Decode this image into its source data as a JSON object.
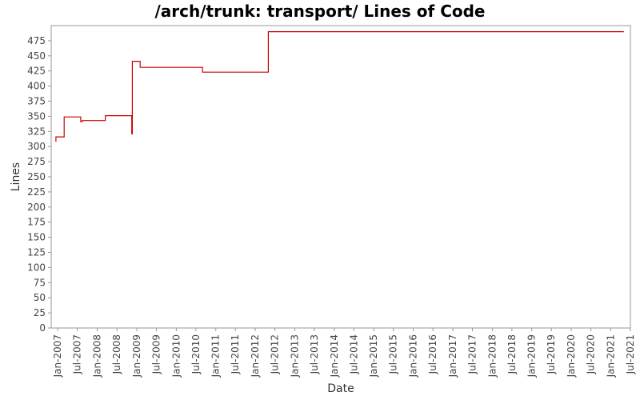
{
  "chart_data": {
    "type": "line",
    "title": "/arch/trunk: transport/ Lines of Code",
    "xlabel": "Date",
    "ylabel": "Lines",
    "xlim": [
      "2006-11-01",
      "2021-07-01"
    ],
    "ylim": [
      0,
      500
    ],
    "y_ticks": [
      0,
      25,
      50,
      75,
      100,
      125,
      150,
      175,
      200,
      225,
      250,
      275,
      300,
      325,
      350,
      375,
      400,
      425,
      450,
      475
    ],
    "x_ticks": [
      {
        "date": "2007-01-01",
        "label": "Jan-2007"
      },
      {
        "date": "2007-07-01",
        "label": "Jul-2007"
      },
      {
        "date": "2008-01-01",
        "label": "Jan-2008"
      },
      {
        "date": "2008-07-01",
        "label": "Jul-2008"
      },
      {
        "date": "2009-01-01",
        "label": "Jan-2009"
      },
      {
        "date": "2009-07-01",
        "label": "Jul-2009"
      },
      {
        "date": "2010-01-01",
        "label": "Jan-2010"
      },
      {
        "date": "2010-07-01",
        "label": "Jul-2010"
      },
      {
        "date": "2011-01-01",
        "label": "Jan-2011"
      },
      {
        "date": "2011-07-01",
        "label": "Jul-2011"
      },
      {
        "date": "2012-01-01",
        "label": "Jan-2012"
      },
      {
        "date": "2012-07-01",
        "label": "Jul-2012"
      },
      {
        "date": "2013-01-01",
        "label": "Jan-2013"
      },
      {
        "date": "2013-07-01",
        "label": "Jul-2013"
      },
      {
        "date": "2014-01-01",
        "label": "Jan-2014"
      },
      {
        "date": "2014-07-01",
        "label": "Jul-2014"
      },
      {
        "date": "2015-01-01",
        "label": "Jan-2015"
      },
      {
        "date": "2015-07-01",
        "label": "Jul-2015"
      },
      {
        "date": "2016-01-01",
        "label": "Jan-2016"
      },
      {
        "date": "2016-07-01",
        "label": "Jul-2016"
      },
      {
        "date": "2017-01-01",
        "label": "Jan-2017"
      },
      {
        "date": "2017-07-01",
        "label": "Jul-2017"
      },
      {
        "date": "2018-01-01",
        "label": "Jan-2018"
      },
      {
        "date": "2018-07-01",
        "label": "Jul-2018"
      },
      {
        "date": "2019-01-01",
        "label": "Jan-2019"
      },
      {
        "date": "2019-07-01",
        "label": "Jul-2019"
      },
      {
        "date": "2020-01-01",
        "label": "Jan-2020"
      },
      {
        "date": "2020-07-01",
        "label": "Jul-2020"
      },
      {
        "date": "2021-01-01",
        "label": "Jan-2021"
      },
      {
        "date": "2021-07-01",
        "label": "Jul-2021"
      }
    ],
    "grid": false,
    "series_color": "#cc0000",
    "series": [
      {
        "points": [
          {
            "x": "2006-12-15",
            "y": 308
          },
          {
            "x": "2006-12-15",
            "y": 316
          },
          {
            "x": "2007-03-01",
            "y": 316
          },
          {
            "x": "2007-03-01",
            "y": 349
          },
          {
            "x": "2007-08-01",
            "y": 349
          },
          {
            "x": "2007-08-01",
            "y": 341
          },
          {
            "x": "2007-08-15",
            "y": 341
          },
          {
            "x": "2007-08-15",
            "y": 343
          },
          {
            "x": "2008-03-15",
            "y": 343
          },
          {
            "x": "2008-03-15",
            "y": 351
          },
          {
            "x": "2008-11-15",
            "y": 351
          },
          {
            "x": "2008-11-15",
            "y": 321
          },
          {
            "x": "2008-11-20",
            "y": 321
          },
          {
            "x": "2008-11-20",
            "y": 441
          },
          {
            "x": "2009-02-01",
            "y": 441
          },
          {
            "x": "2009-02-01",
            "y": 431
          },
          {
            "x": "2010-09-01",
            "y": 431
          },
          {
            "x": "2010-09-01",
            "y": 423
          },
          {
            "x": "2012-05-01",
            "y": 423
          },
          {
            "x": "2012-05-01",
            "y": 490
          },
          {
            "x": "2021-05-01",
            "y": 490
          }
        ]
      }
    ]
  }
}
